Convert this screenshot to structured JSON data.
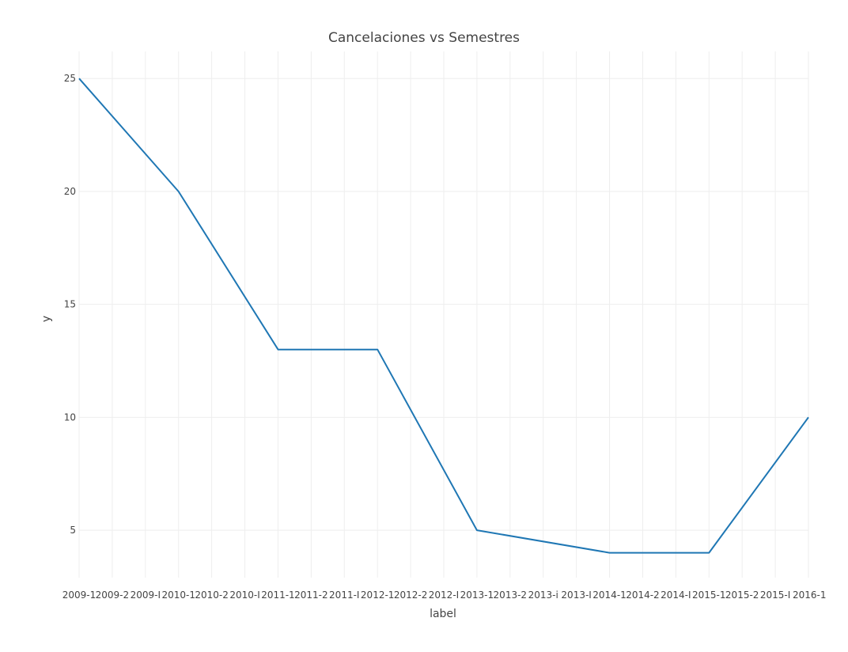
{
  "chart_data": {
    "type": "line",
    "title": "Cancelaciones vs Semestres",
    "xlabel": "label",
    "ylabel": "y",
    "categories": [
      "2009-1",
      "2009-2",
      "2009-I",
      "2010-1",
      "2010-2",
      "2010-I",
      "2011-1",
      "2011-2",
      "2011-I",
      "2012-1",
      "2012-2",
      "2012-I",
      "2013-1",
      "2013-2",
      "2013-i",
      "2013-I",
      "2014-1",
      "2014-2",
      "2014-I",
      "2015-1",
      "2015-2",
      "2015-I",
      "2016-1"
    ],
    "x": [
      "2009-1",
      "2010-1",
      "2011-1",
      "2012-1",
      "2013-1",
      "2014-1",
      "2015-1",
      "2016-1"
    ],
    "series": [
      {
        "values": [
          25,
          20,
          13,
          13,
          5,
          4,
          4,
          10
        ],
        "color": "#1f77b4"
      }
    ],
    "yticks": [
      5,
      10,
      15,
      20,
      25
    ],
    "ylim": [
      2.9,
      26.2
    ],
    "grid": true,
    "legend": "none"
  }
}
